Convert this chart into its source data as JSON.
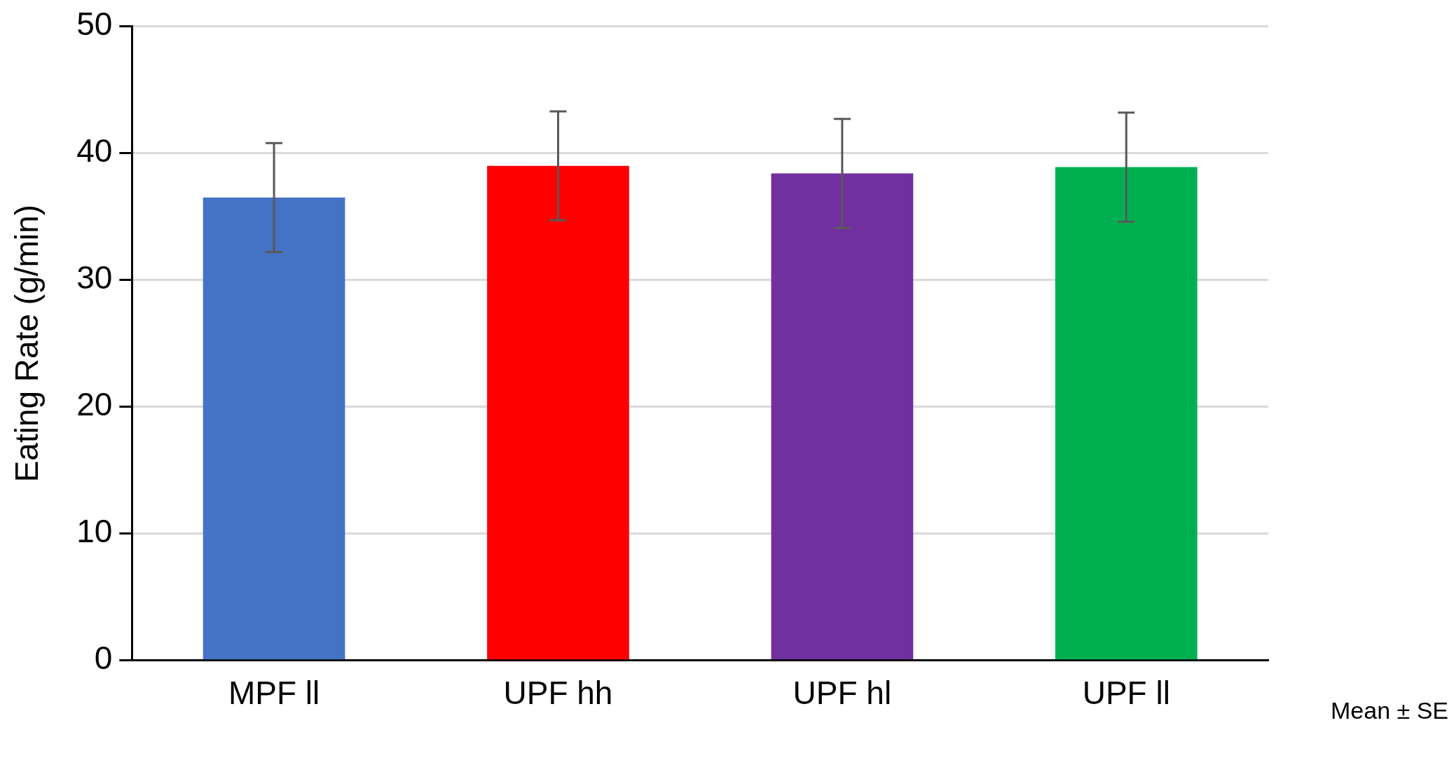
{
  "chart_data": {
    "type": "bar",
    "ylabel": "Eating Rate (g/min)",
    "categories": [
      "MPF ll",
      "UPF hh",
      "UPF hl",
      "UPF ll"
    ],
    "values": [
      36.5,
      39.0,
      38.4,
      38.9
    ],
    "colors": [
      "#4472c4",
      "#ff0000",
      "#7030a0",
      "#00b050"
    ],
    "errors": [
      4.3,
      4.3,
      4.3,
      4.3
    ],
    "ylim": [
      0,
      50
    ],
    "yticks": [
      0,
      10,
      20,
      30,
      40,
      50
    ],
    "grid": "y",
    "legend": false,
    "annotations": [
      "Mean ± SE"
    ]
  }
}
